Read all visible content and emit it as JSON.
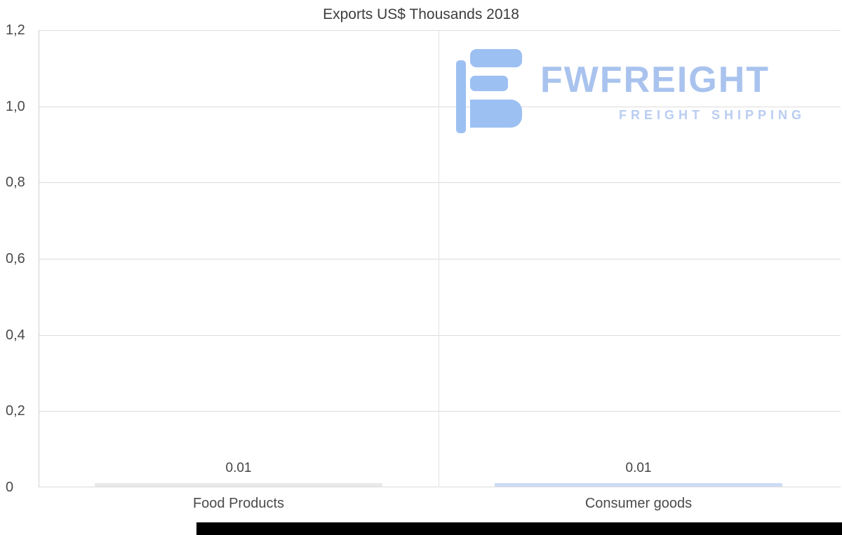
{
  "title": "Exports US$ Thousands 2018",
  "watermark": {
    "brand": "FWFREIGHT",
    "tagline": "FREIGHT SHIPPING",
    "brand_color": "#a9c3ee",
    "icon_color": "#9dc0f2"
  },
  "chart_data": {
    "type": "bar",
    "title": "Exports US$ Thousands 2018",
    "categories": [
      "Food Products",
      "Consumer goods"
    ],
    "values": [
      0.01,
      0.01
    ],
    "value_labels": [
      "0.01",
      "0.01"
    ],
    "bar_colors": [
      "#e9e9e9",
      "#cbdcf6"
    ],
    "xlabel": "",
    "ylabel": "",
    "ylim": [
      0,
      1.2
    ],
    "y_ticks": [
      "1,2",
      "1,0",
      "0,8",
      "0,6",
      "0,4",
      "0,2",
      "0"
    ],
    "y_tick_values": [
      1.2,
      1.0,
      0.8,
      0.6,
      0.4,
      0.2,
      0
    ],
    "grid": true,
    "legend": "none",
    "decimal_separator": ","
  }
}
